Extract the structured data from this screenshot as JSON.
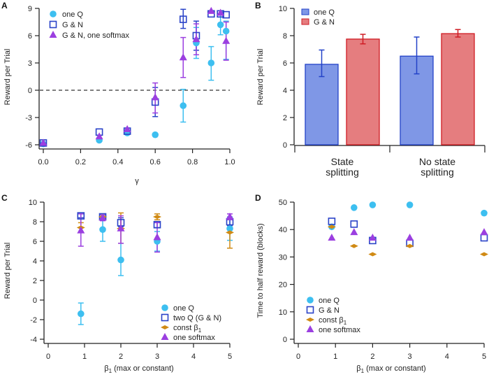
{
  "colors": {
    "oneQ": "#3dbff0",
    "gn": "#2a43c8",
    "softmax": "#9b3fe0",
    "const": "#d08a14",
    "barBlue": "#7f97e6",
    "barBlueEdge": "#2342c8",
    "barRed": "#e57d7f",
    "barRedEdge": "#cf1c24",
    "axis": "#222222"
  },
  "chart_data": [
    {
      "panel": "A",
      "type": "scatter",
      "xlabel": "γ",
      "ylabel": "Reward per Trial",
      "xlim": [
        0.0,
        1.0
      ],
      "ylim": [
        -6,
        9
      ],
      "xticks": [
        "0.0",
        "0.2",
        "0.4",
        "0.6",
        "0.8",
        "1.0"
      ],
      "yticks": [
        "-6",
        "-3",
        "0",
        "3",
        "6",
        "9"
      ],
      "reference_line": {
        "y": 0,
        "style": "dashed"
      },
      "legend_position": "top-left",
      "series": [
        {
          "name": "one Q",
          "key": "oneQ",
          "marker": "circle",
          "x": [
            0.0,
            0.3,
            0.45,
            0.6,
            0.75,
            0.82,
            0.9,
            0.95,
            0.98
          ],
          "y": [
            -5.9,
            -5.5,
            -4.7,
            -4.9,
            -1.7,
            5.2,
            3.0,
            7.2,
            6.5
          ],
          "err_low": [
            null,
            null,
            null,
            null,
            -3.5,
            3.5,
            1.1,
            6.1,
            3.4
          ],
          "err_high": [
            null,
            null,
            null,
            null,
            0.1,
            6.9,
            4.8,
            8.3,
            7.6
          ]
        },
        {
          "name": "G & N",
          "key": "gn",
          "marker": "square-open",
          "x": [
            0.0,
            0.3,
            0.45,
            0.6,
            0.75,
            0.82,
            0.9,
            0.95,
            0.98
          ],
          "y": [
            -5.8,
            -4.6,
            -4.5,
            -1.3,
            7.8,
            6.0,
            8.4,
            8.4,
            8.3
          ],
          "err_low": [
            null,
            null,
            null,
            -2.9,
            6.8,
            4.4,
            null,
            null,
            null
          ],
          "err_high": [
            null,
            null,
            null,
            0.3,
            8.9,
            7.6,
            null,
            null,
            null
          ]
        },
        {
          "name": "G & N, one softmax",
          "key": "softmax",
          "marker": "triangle",
          "x": [
            0.0,
            0.3,
            0.45,
            0.6,
            0.75,
            0.82,
            0.9,
            0.95,
            0.98
          ],
          "y": [
            -5.8,
            -5.1,
            -4.3,
            -0.8,
            3.6,
            5.6,
            8.7,
            8.5,
            5.4
          ],
          "err_low": [
            null,
            null,
            null,
            -2.5,
            1.4,
            3.9,
            null,
            null,
            3.3
          ],
          "err_high": [
            null,
            null,
            null,
            0.8,
            5.8,
            7.3,
            null,
            null,
            7.5
          ]
        }
      ]
    },
    {
      "panel": "B",
      "type": "bar",
      "ylabel": "Reward per Trial",
      "ylim": [
        0,
        10
      ],
      "yticks": [
        "0",
        "2",
        "4",
        "6",
        "8",
        "10"
      ],
      "categories": [
        "State\nsplitting",
        "No state\nsplitting"
      ],
      "category_lines": [
        [
          "State",
          "splitting"
        ],
        [
          "No state",
          "splitting"
        ]
      ],
      "legend_position": "top-left",
      "series": [
        {
          "name": "one Q",
          "key": "blue",
          "values": [
            5.9,
            6.5
          ],
          "err_low": [
            5.0,
            5.2
          ],
          "err_high": [
            6.95,
            7.9
          ]
        },
        {
          "name": "G & N",
          "key": "red",
          "values": [
            7.75,
            8.15
          ],
          "err_low": [
            7.4,
            7.9
          ],
          "err_high": [
            8.1,
            8.45
          ]
        }
      ]
    },
    {
      "panel": "C",
      "type": "scatter",
      "xlabel": "β1 (max or constant)",
      "ylabel": "Reward per Trial",
      "xlim": [
        0,
        5
      ],
      "ylim": [
        -4,
        10
      ],
      "xticks": [
        "0",
        "1",
        "2",
        "3",
        "4",
        "5"
      ],
      "yticks": [
        "-4",
        "-2",
        "0",
        "2",
        "4",
        "6",
        "8",
        "10"
      ],
      "legend_position": "bottom-right",
      "series": [
        {
          "name": "one Q",
          "key": "oneQ",
          "marker": "circle",
          "x": [
            0.9,
            1.5,
            2.0,
            3.0,
            5.0
          ],
          "y": [
            -1.4,
            7.2,
            4.1,
            6.0,
            7.3
          ],
          "err_low": [
            -2.5,
            6.0,
            2.5,
            5.0,
            6.1
          ],
          "err_high": [
            -0.3,
            8.3,
            5.8,
            7.0,
            8.5
          ]
        },
        {
          "name": "two Q  (G & N)",
          "key": "gn",
          "marker": "square-open",
          "x": [
            0.9,
            1.5,
            2.0,
            3.0,
            5.0
          ],
          "y": [
            8.6,
            8.5,
            7.9,
            7.7,
            8.0
          ],
          "err_low": [
            8.4,
            8.3,
            7.5,
            7.4,
            7.6
          ],
          "err_high": [
            8.8,
            8.7,
            8.4,
            8.0,
            8.4
          ]
        },
        {
          "name": "const β1",
          "key": "const",
          "marker": "diamond",
          "x": [
            0.9,
            1.5,
            2.0,
            3.0,
            5.0
          ],
          "y": [
            7.4,
            8.5,
            7.3,
            8.5,
            6.9
          ],
          "err_low": [
            6.9,
            8.2,
            5.8,
            8.2,
            5.3
          ],
          "err_high": [
            7.9,
            8.7,
            8.9,
            8.8,
            7.3
          ]
        },
        {
          "name": "one softmax",
          "key": "softmax",
          "marker": "triangle",
          "x": [
            0.9,
            1.5,
            2.0,
            3.0,
            5.0
          ],
          "y": [
            7.1,
            8.4,
            7.3,
            6.4,
            8.5
          ],
          "err_low": [
            5.5,
            8.1,
            5.8,
            4.9,
            8.2
          ],
          "err_high": [
            8.8,
            8.7,
            8.6,
            7.9,
            8.8
          ]
        }
      ]
    },
    {
      "panel": "D",
      "type": "scatter",
      "xlabel": "β1 (max or constant)",
      "ylabel": "Time to half reward (blocks)",
      "xlim": [
        0,
        5
      ],
      "ylim": [
        0,
        50
      ],
      "xticks": [
        "0",
        "1",
        "2",
        "3",
        "4",
        "5"
      ],
      "yticks": [
        "0",
        "10",
        "20",
        "30",
        "40",
        "50"
      ],
      "legend_position": "bottom-left",
      "series": [
        {
          "name": "one Q",
          "key": "oneQ",
          "marker": "circle",
          "x": [
            0.9,
            1.5,
            2.0,
            3.0,
            5.0
          ],
          "y": [
            41,
            48,
            49,
            49,
            46
          ]
        },
        {
          "name": " G & N",
          "key": "gn",
          "marker": "square-open",
          "x": [
            0.9,
            1.5,
            2.0,
            3.0,
            5.0
          ],
          "y": [
            43,
            42,
            36,
            35,
            37
          ]
        },
        {
          "name": "const β1",
          "key": "const",
          "marker": "diamond",
          "x": [
            0.9,
            1.5,
            2.0,
            3.0,
            5.0
          ],
          "y": [
            41,
            34,
            31,
            34,
            31
          ]
        },
        {
          "name": "one softmax",
          "key": "softmax",
          "marker": "triangle",
          "x": [
            0.9,
            1.5,
            2.0,
            3.0,
            5.0
          ],
          "y": [
            37,
            39,
            37,
            37,
            39
          ]
        }
      ]
    }
  ]
}
